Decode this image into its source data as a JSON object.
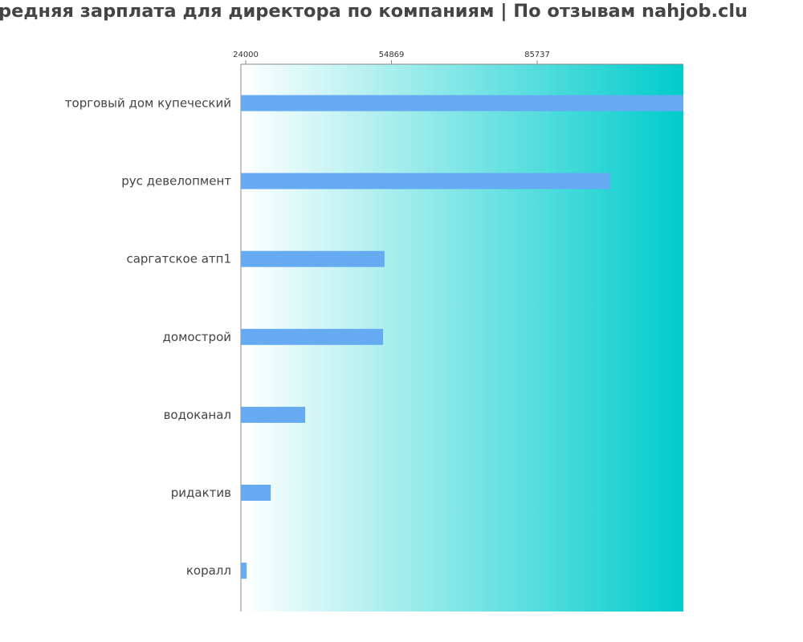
{
  "title": "редняя зарплата для директора по компаниям  | По отзывам nahjob.clu",
  "chart_data": {
    "type": "bar",
    "orientation": "horizontal",
    "title": "редняя зарплата для директора по компаниям  | По отзывам nahjob.clu",
    "categories": [
      "торговый дом купеческий",
      "рус девелопмент",
      "саргатское атп1",
      "домострой",
      "водоканал",
      "ридактив",
      "коралл"
    ],
    "values": [
      116700,
      101200,
      53400,
      53100,
      36600,
      29300,
      24200
    ],
    "xticks": [
      24000,
      54869,
      85737
    ],
    "xlim": [
      23000,
      116700
    ],
    "xaxis_position": "top",
    "grid": false,
    "bar_color": "#66aaf2",
    "background_gradient": [
      "#ffffff",
      "#00cccc"
    ]
  }
}
